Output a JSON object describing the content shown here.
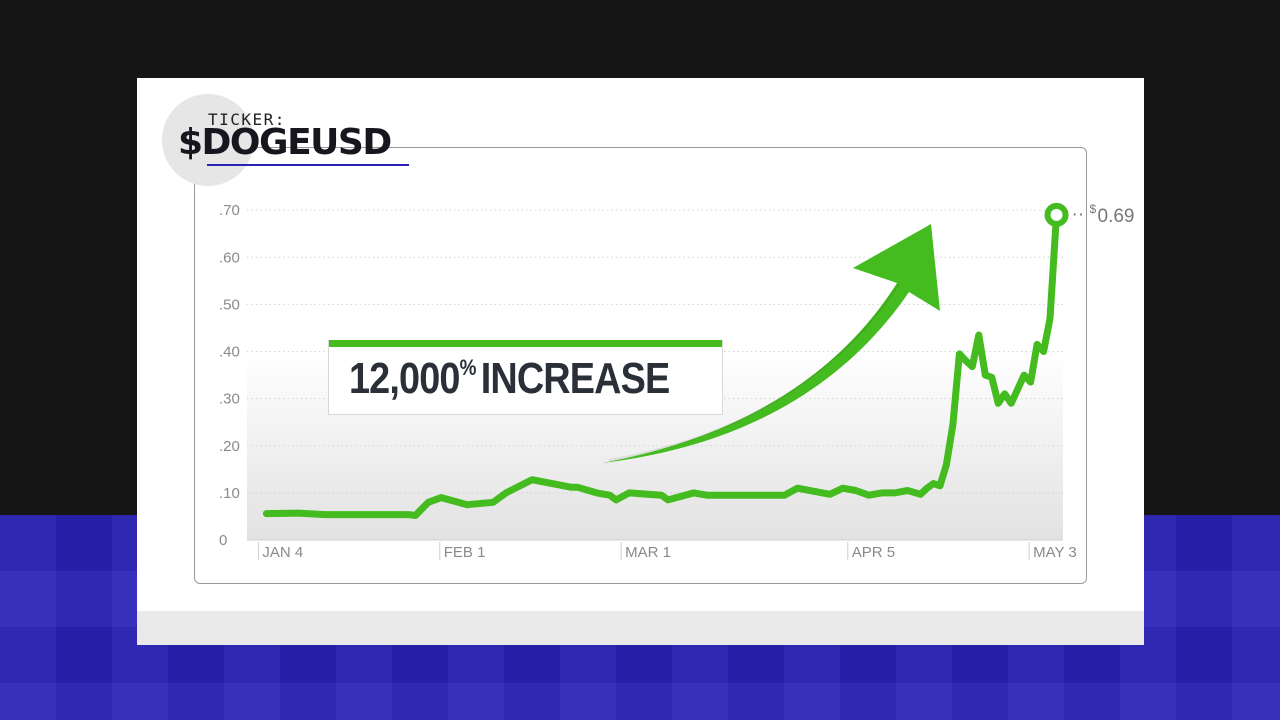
{
  "ticker": {
    "label": "TICKER:",
    "symbol": "$DOGEUSD"
  },
  "callout": {
    "number": "12,000",
    "suffix": "%",
    "text": "INCREASE"
  },
  "colors": {
    "line": "#44bb1e",
    "arrow": "#44bb1e",
    "background_top": "#151515",
    "background_bottom": "#2b22b8"
  },
  "chart_data": {
    "type": "line",
    "title": "",
    "xlabel": "",
    "ylabel": "",
    "ylim": [
      0,
      0.73
    ],
    "x_range": [
      "2021-01-01",
      "2021-05-07"
    ],
    "y_ticks": [
      {
        "value": 0,
        "label": "0"
      },
      {
        "value": 0.1,
        "label": ".10"
      },
      {
        "value": 0.2,
        "label": ".20"
      },
      {
        "value": 0.3,
        "label": ".30"
      },
      {
        "value": 0.4,
        "label": ".40"
      },
      {
        "value": 0.5,
        "label": ".50"
      },
      {
        "value": 0.6,
        "label": ".60"
      },
      {
        "value": 0.7,
        "label": ".70"
      }
    ],
    "x_ticks": [
      {
        "value": "2021-01-04",
        "label": "JAN 4"
      },
      {
        "value": "2021-02-01",
        "label": "FEB 1"
      },
      {
        "value": "2021-03-01",
        "label": "MAR 1"
      },
      {
        "value": "2021-04-05",
        "label": "APR 5"
      },
      {
        "value": "2021-05-03",
        "label": "MAY 3"
      }
    ],
    "grid": true,
    "series": [
      {
        "x": [
          "2021-01-04",
          "2021-01-09",
          "2021-01-13",
          "2021-01-21",
          "2021-01-26",
          "2021-01-27",
          "2021-01-29",
          "2021-01-31",
          "2021-02-04",
          "2021-02-08",
          "2021-02-10",
          "2021-02-14",
          "2021-02-20",
          "2021-02-21",
          "2021-02-24",
          "2021-02-26",
          "2021-02-27",
          "2021-03-01",
          "2021-03-06",
          "2021-03-07",
          "2021-03-11",
          "2021-03-13",
          "2021-03-20",
          "2021-03-25",
          "2021-03-27",
          "2021-04-01",
          "2021-04-03",
          "2021-04-05",
          "2021-04-07",
          "2021-04-09",
          "2021-04-11",
          "2021-04-13",
          "2021-04-15",
          "2021-04-16",
          "2021-04-17",
          "2021-04-18",
          "2021-04-19",
          "2021-04-20",
          "2021-04-21",
          "2021-04-22",
          "2021-04-23",
          "2021-04-24",
          "2021-04-25",
          "2021-04-26",
          "2021-04-27",
          "2021-04-28",
          "2021-04-29",
          "2021-04-30",
          "2021-05-01",
          "2021-05-02",
          "2021-05-03",
          "2021-05-04",
          "2021-05-05",
          "2021-05-06"
        ],
        "y": [
          0.056,
          0.057,
          0.054,
          0.054,
          0.054,
          0.052,
          0.08,
          0.09,
          0.075,
          0.08,
          0.1,
          0.128,
          0.112,
          0.112,
          0.1,
          0.095,
          0.085,
          0.1,
          0.095,
          0.085,
          0.1,
          0.095,
          0.095,
          0.095,
          0.11,
          0.097,
          0.11,
          0.105,
          0.095,
          0.1,
          0.1,
          0.105,
          0.097,
          0.11,
          0.12,
          0.115,
          0.16,
          0.245,
          0.395,
          0.38,
          0.368,
          0.435,
          0.35,
          0.345,
          0.29,
          0.31,
          0.29,
          0.32,
          0.35,
          0.335,
          0.415,
          0.4,
          0.47,
          0.69
        ]
      }
    ],
    "end_annotation": "0.69",
    "end_annotation_prefix": "$"
  }
}
